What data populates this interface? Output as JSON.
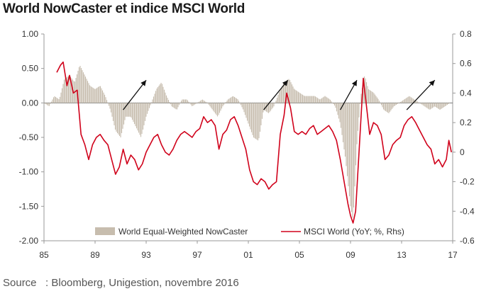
{
  "title": "World NowCaster et indice MSCI World",
  "source": "Source   : Bloomberg, Unigestion, novembre 2016",
  "chart_data": {
    "type": "bar+line",
    "x_range": [
      1985,
      2017
    ],
    "x_tick_labels": [
      "85",
      "89",
      "93",
      "97",
      "01",
      "05",
      "09",
      "13",
      "17"
    ],
    "x_ticks": [
      1985,
      1989,
      1993,
      1997,
      2001,
      2005,
      2009,
      2013,
      2017
    ],
    "left_axis": {
      "range": [
        -2.0,
        1.0
      ],
      "ticks": [
        1.0,
        0.5,
        0.0,
        -0.5,
        -1.0,
        -1.5,
        -2.0
      ],
      "tick_labels": [
        "1.00",
        "0.50",
        "0.00",
        "-0.50",
        "-1.00",
        "-1.50",
        "-2.00"
      ]
    },
    "right_axis": {
      "range": [
        -0.6,
        0.8
      ],
      "ticks": [
        0.8,
        0.6,
        0.4,
        0.2,
        0,
        -0.2,
        -0.4,
        -0.6
      ],
      "tick_labels": [
        "0.8",
        "0.6",
        "0.4",
        "0.2",
        "0",
        "-0.2",
        "-0.4",
        "-0.6"
      ]
    },
    "series": [
      {
        "name": "World Equal-Weighted NowCaster",
        "kind": "bar",
        "axis": "left",
        "color": "#c7bdae",
        "points": [
          [
            1985.0,
            0.0
          ],
          [
            1985.4,
            -0.05
          ],
          [
            1985.8,
            0.1
          ],
          [
            1986.2,
            0.05
          ],
          [
            1986.6,
            0.35
          ],
          [
            1987.0,
            0.4
          ],
          [
            1987.4,
            0.3
          ],
          [
            1987.8,
            0.55
          ],
          [
            1988.2,
            0.4
          ],
          [
            1988.6,
            0.25
          ],
          [
            1989.0,
            0.2
          ],
          [
            1989.4,
            0.25
          ],
          [
            1989.8,
            0.1
          ],
          [
            1990.2,
            -0.1
          ],
          [
            1990.6,
            -0.4
          ],
          [
            1991.0,
            -0.5
          ],
          [
            1991.4,
            -0.2
          ],
          [
            1991.8,
            -0.2
          ],
          [
            1992.2,
            -0.35
          ],
          [
            1992.6,
            -0.5
          ],
          [
            1993.0,
            -0.2
          ],
          [
            1993.4,
            0.0
          ],
          [
            1993.8,
            0.2
          ],
          [
            1994.2,
            0.3
          ],
          [
            1994.6,
            0.1
          ],
          [
            1995.0,
            -0.05
          ],
          [
            1995.4,
            -0.1
          ],
          [
            1995.8,
            0.05
          ],
          [
            1996.2,
            0.05
          ],
          [
            1996.6,
            -0.05
          ],
          [
            1997.0,
            0.0
          ],
          [
            1997.4,
            0.05
          ],
          [
            1997.8,
            0.0
          ],
          [
            1998.2,
            -0.1
          ],
          [
            1998.6,
            -0.2
          ],
          [
            1999.0,
            -0.05
          ],
          [
            1999.4,
            0.05
          ],
          [
            1999.8,
            0.1
          ],
          [
            2000.2,
            0.05
          ],
          [
            2000.6,
            -0.1
          ],
          [
            2001.0,
            -0.3
          ],
          [
            2001.4,
            -0.5
          ],
          [
            2001.8,
            -0.55
          ],
          [
            2002.2,
            -0.1
          ],
          [
            2002.6,
            -0.15
          ],
          [
            2003.0,
            -0.05
          ],
          [
            2003.4,
            0.15
          ],
          [
            2003.8,
            0.3
          ],
          [
            2004.2,
            0.35
          ],
          [
            2004.6,
            0.2
          ],
          [
            2005.0,
            0.15
          ],
          [
            2005.4,
            0.1
          ],
          [
            2005.8,
            0.1
          ],
          [
            2006.2,
            0.1
          ],
          [
            2006.6,
            0.05
          ],
          [
            2007.0,
            0.1
          ],
          [
            2007.4,
            0.05
          ],
          [
            2007.8,
            -0.05
          ],
          [
            2008.2,
            -0.3
          ],
          [
            2008.6,
            -0.8
          ],
          [
            2009.0,
            -1.5
          ],
          [
            2009.2,
            -1.7
          ],
          [
            2009.5,
            -0.6
          ],
          [
            2009.8,
            0.1
          ],
          [
            2010.1,
            0.4
          ],
          [
            2010.4,
            0.2
          ],
          [
            2010.8,
            0.15
          ],
          [
            2011.2,
            0.05
          ],
          [
            2011.6,
            -0.1
          ],
          [
            2012.0,
            -0.15
          ],
          [
            2012.4,
            -0.05
          ],
          [
            2012.8,
            0.0
          ],
          [
            2013.2,
            0.05
          ],
          [
            2013.6,
            0.1
          ],
          [
            2014.0,
            0.05
          ],
          [
            2014.4,
            0.0
          ],
          [
            2014.8,
            -0.05
          ],
          [
            2015.2,
            -0.1
          ],
          [
            2015.6,
            -0.05
          ],
          [
            2016.0,
            -0.1
          ],
          [
            2016.4,
            -0.05
          ],
          [
            2016.8,
            0.0
          ]
        ]
      },
      {
        "name": "MSCI World (YoY; %, Rhs)",
        "kind": "line",
        "axis": "right",
        "color": "#d0021b",
        "points": [
          [
            1986.0,
            0.54
          ],
          [
            1986.3,
            0.59
          ],
          [
            1986.5,
            0.61
          ],
          [
            1986.8,
            0.45
          ],
          [
            1987.0,
            0.52
          ],
          [
            1987.3,
            0.4
          ],
          [
            1987.6,
            0.42
          ],
          [
            1987.9,
            0.12
          ],
          [
            1988.2,
            0.05
          ],
          [
            1988.5,
            -0.05
          ],
          [
            1988.8,
            0.05
          ],
          [
            1989.1,
            0.1
          ],
          [
            1989.4,
            0.12
          ],
          [
            1989.7,
            0.08
          ],
          [
            1990.0,
            0.05
          ],
          [
            1990.3,
            -0.05
          ],
          [
            1990.6,
            -0.15
          ],
          [
            1990.9,
            -0.1
          ],
          [
            1991.2,
            0.02
          ],
          [
            1991.5,
            -0.08
          ],
          [
            1991.8,
            -0.02
          ],
          [
            1992.1,
            -0.05
          ],
          [
            1992.4,
            -0.12
          ],
          [
            1992.7,
            -0.08
          ],
          [
            1993.0,
            0.0
          ],
          [
            1993.3,
            0.05
          ],
          [
            1993.6,
            0.1
          ],
          [
            1993.9,
            0.12
          ],
          [
            1994.2,
            0.05
          ],
          [
            1994.5,
            0.0
          ],
          [
            1994.8,
            -0.02
          ],
          [
            1995.1,
            0.02
          ],
          [
            1995.4,
            0.08
          ],
          [
            1995.7,
            0.12
          ],
          [
            1996.0,
            0.14
          ],
          [
            1996.3,
            0.12
          ],
          [
            1996.6,
            0.1
          ],
          [
            1996.9,
            0.14
          ],
          [
            1997.2,
            0.16
          ],
          [
            1997.5,
            0.24
          ],
          [
            1997.8,
            0.2
          ],
          [
            1998.1,
            0.22
          ],
          [
            1998.4,
            0.18
          ],
          [
            1998.7,
            0.02
          ],
          [
            1999.0,
            0.12
          ],
          [
            1999.3,
            0.15
          ],
          [
            1999.6,
            0.22
          ],
          [
            1999.9,
            0.24
          ],
          [
            2000.2,
            0.18
          ],
          [
            2000.5,
            0.1
          ],
          [
            2000.8,
            0.02
          ],
          [
            2001.1,
            -0.12
          ],
          [
            2001.4,
            -0.2
          ],
          [
            2001.7,
            -0.22
          ],
          [
            2002.0,
            -0.18
          ],
          [
            2002.3,
            -0.2
          ],
          [
            2002.6,
            -0.25
          ],
          [
            2002.9,
            -0.22
          ],
          [
            2003.2,
            -0.2
          ],
          [
            2003.5,
            0.12
          ],
          [
            2003.8,
            0.25
          ],
          [
            2004.0,
            0.4
          ],
          [
            2004.3,
            0.3
          ],
          [
            2004.6,
            0.14
          ],
          [
            2004.9,
            0.12
          ],
          [
            2005.2,
            0.14
          ],
          [
            2005.5,
            0.12
          ],
          [
            2005.8,
            0.16
          ],
          [
            2006.1,
            0.18
          ],
          [
            2006.4,
            0.12
          ],
          [
            2006.7,
            0.14
          ],
          [
            2007.0,
            0.16
          ],
          [
            2007.3,
            0.18
          ],
          [
            2007.6,
            0.14
          ],
          [
            2007.9,
            0.08
          ],
          [
            2008.2,
            -0.05
          ],
          [
            2008.5,
            -0.2
          ],
          [
            2008.8,
            -0.35
          ],
          [
            2009.0,
            -0.43
          ],
          [
            2009.2,
            -0.48
          ],
          [
            2009.4,
            -0.4
          ],
          [
            2009.6,
            -0.1
          ],
          [
            2009.8,
            0.2
          ],
          [
            2010.0,
            0.5
          ],
          [
            2010.2,
            0.35
          ],
          [
            2010.5,
            0.12
          ],
          [
            2010.8,
            0.2
          ],
          [
            2011.1,
            0.18
          ],
          [
            2011.4,
            0.12
          ],
          [
            2011.7,
            -0.05
          ],
          [
            2012.0,
            -0.02
          ],
          [
            2012.3,
            0.05
          ],
          [
            2012.6,
            0.08
          ],
          [
            2012.9,
            0.1
          ],
          [
            2013.2,
            0.18
          ],
          [
            2013.5,
            0.22
          ],
          [
            2013.8,
            0.24
          ],
          [
            2014.1,
            0.2
          ],
          [
            2014.4,
            0.15
          ],
          [
            2014.7,
            0.1
          ],
          [
            2015.0,
            0.05
          ],
          [
            2015.3,
            0.02
          ],
          [
            2015.6,
            -0.08
          ],
          [
            2015.9,
            -0.05
          ],
          [
            2016.2,
            -0.1
          ],
          [
            2016.5,
            -0.05
          ],
          [
            2016.7,
            0.08
          ],
          [
            2016.9,
            0.0
          ]
        ]
      }
    ],
    "annotations": [
      {
        "type": "arrow",
        "from": [
          1991.2,
          -0.1
        ],
        "to": [
          1993.0,
          0.33
        ]
      },
      {
        "type": "arrow",
        "from": [
          2002.2,
          -0.1
        ],
        "to": [
          2004.1,
          0.33
        ]
      },
      {
        "type": "arrow",
        "from": [
          2008.2,
          -0.1
        ],
        "to": [
          2009.5,
          0.33
        ]
      },
      {
        "type": "arrow",
        "from": [
          2013.4,
          -0.1
        ],
        "to": [
          2015.6,
          0.33
        ]
      }
    ],
    "grid": false,
    "legend_position": "bottom-center"
  }
}
